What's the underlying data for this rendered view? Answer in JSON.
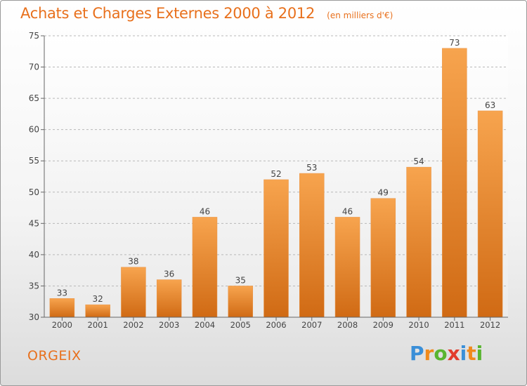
{
  "header": {
    "title": "Achats et Charges Externes 2000 à 2012",
    "unit": "(en milliers d'€)"
  },
  "footer": {
    "town": "ORGEIX",
    "brand_letters": [
      "P",
      "r",
      "o",
      "x",
      "i",
      "t",
      "i"
    ],
    "brand_colors": [
      "#3a8fd8",
      "#f08a1c",
      "#59b530",
      "#e23c2c",
      "#3a8fd8",
      "#f08a1c",
      "#59b530"
    ]
  },
  "colors": {
    "accent": "#e8701c",
    "bar_top": "#f7a44e",
    "bar_bottom": "#d06a14"
  },
  "chart_data": {
    "type": "bar",
    "title": "Achats et Charges Externes 2000 à 2012",
    "subtitle": "(en milliers d'€)",
    "xlabel": "",
    "ylabel": "",
    "categories": [
      "2000",
      "2001",
      "2002",
      "2003",
      "2004",
      "2005",
      "2006",
      "2007",
      "2008",
      "2009",
      "2010",
      "2011",
      "2012"
    ],
    "values": [
      33,
      32,
      38,
      36,
      46,
      35,
      52,
      53,
      46,
      49,
      54,
      73,
      63
    ],
    "ylim": [
      30,
      75
    ],
    "yticks": [
      30,
      35,
      40,
      45,
      50,
      55,
      60,
      65,
      70,
      75
    ],
    "grid": true,
    "data_labels": true
  }
}
